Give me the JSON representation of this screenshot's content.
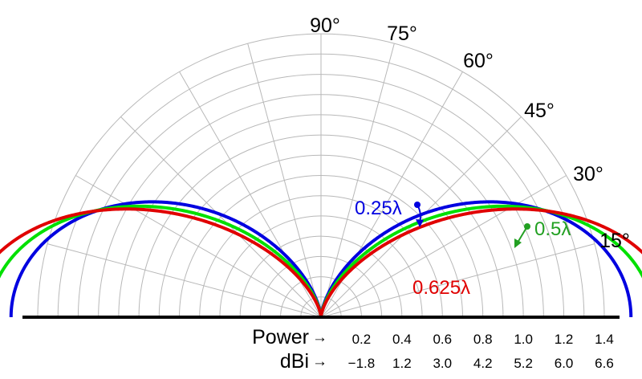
{
  "chart_data": {
    "type": "polar-line",
    "angle_labels": [
      "15°",
      "30°",
      "45°",
      "60°",
      "75°",
      "90°"
    ],
    "angle_ticks_deg": [
      15,
      30,
      45,
      60,
      75,
      90
    ],
    "radial_ticks": [
      0.2,
      0.4,
      0.6,
      0.8,
      1.0,
      1.2,
      1.4
    ],
    "radial_tick_labels": [
      "0.2",
      "0.4",
      "0.6",
      "0.8",
      "1.0",
      "1.2",
      "1.4"
    ],
    "dbi_tick_labels": [
      "−1.8",
      "1.2",
      "3.0",
      "4.2",
      "5.2",
      "6.0",
      "6.6"
    ],
    "radial_axis_label": "Power",
    "dbi_axis_label": "dBi",
    "arrow_glyph": "→",
    "rmax": 1.4,
    "grid": true,
    "series": [
      {
        "name": "0.25λ",
        "length_wavelengths": 0.25,
        "color": "#0000e0"
      },
      {
        "name": "0.5λ",
        "length_wavelengths": 0.5,
        "color": "#00e000"
      },
      {
        "name": "0.625λ",
        "length_wavelengths": 0.625,
        "color": "#e00000"
      }
    ]
  }
}
